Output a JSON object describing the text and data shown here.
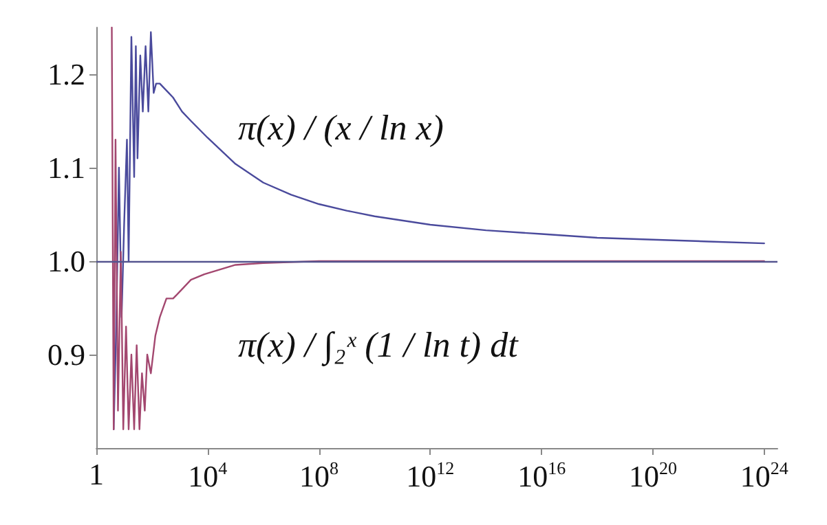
{
  "chart_data": {
    "type": "line",
    "log": "x",
    "grid": false,
    "legend": false,
    "marker": "none",
    "line_style": "solid",
    "xlim": [
      1,
      3e+24
    ],
    "ylim": [
      0.8,
      1.25
    ],
    "xticks": [
      1,
      {
        "value": 10000,
        "label": "10$^{4}$"
      },
      {
        "value": 100000000.0,
        "label": "10$^{8}$"
      },
      {
        "value": 1000000000000.0,
        "label": "10$^{12}$"
      },
      {
        "value": 1e+16,
        "label": "10$^{16}$"
      },
      {
        "value": 1e+20,
        "label": "10$^{20}$"
      },
      {
        "value": 1e+24,
        "label": "10$^{24}$"
      }
    ],
    "yticks": [
      0.9,
      {
        "value": 1,
        "label": "1.0"
      },
      1.1,
      1.2
    ],
    "ref_lines": [
      {
        "axis": "y",
        "value": 1,
        "color": "#55558f"
      }
    ],
    "series": [
      {
        "name": "π(x) / (x / ln x)",
        "color": "#4a4a9c",
        "x": [
          4.2,
          5.2,
          6.5,
          8.1,
          10,
          12.6,
          14.5,
          18.2,
          22.9,
          26.3,
          30.2,
          38,
          46.8,
          58.9,
          74.1,
          91.2,
          115,
          141,
          191,
          275,
          398,
          575,
          1202,
          2512,
          10000.0,
          100000.0,
          1000000.0,
          10000000.0,
          100000000.0,
          1000000000.0,
          10000000000.0,
          1000000000000.0,
          100000000000000.0,
          1e+16,
          1e+18,
          1e+20,
          1e+22,
          1e+24
        ],
        "values": [
          0.82,
          0.93,
          1.1,
          0.94,
          1.04,
          1.13,
          1.0,
          1.24,
          1.09,
          1.23,
          1.11,
          1.22,
          1.16,
          1.23,
          1.16,
          1.245,
          1.18,
          1.19,
          1.19,
          1.185,
          1.18,
          1.175,
          1.16,
          1.15,
          1.132,
          1.104,
          1.084,
          1.071,
          1.061,
          1.054,
          1.048,
          1.039,
          1.033,
          1.029,
          1.025,
          1.023,
          1.021,
          1.019
        ]
      },
      {
        "name": "π(x) / ∫₂ˣ (1 / ln t) dt",
        "color": "#a3476f",
        "x": [
          3.6,
          4.2,
          4.9,
          6.0,
          7.6,
          9.3,
          11.7,
          14.5,
          18.2,
          22.9,
          28.2,
          35.5,
          43.7,
          55,
          67.6,
          91.2,
          132,
          191,
          331,
          575,
          1202,
          2512,
          7586,
          100000.0,
          1000000.0,
          100000000.0,
          1000000000000.0,
          1e+16,
          1e+20,
          1e+24
        ],
        "values": [
          1.25,
          0.82,
          1.13,
          0.84,
          1.01,
          0.82,
          0.93,
          0.82,
          0.9,
          0.82,
          0.91,
          0.82,
          0.88,
          0.84,
          0.9,
          0.88,
          0.92,
          0.94,
          0.96,
          0.96,
          0.97,
          0.98,
          0.986,
          0.996,
          0.998,
          1.0,
          1.0,
          1.0,
          1.0,
          1.0
        ]
      }
    ]
  }
}
